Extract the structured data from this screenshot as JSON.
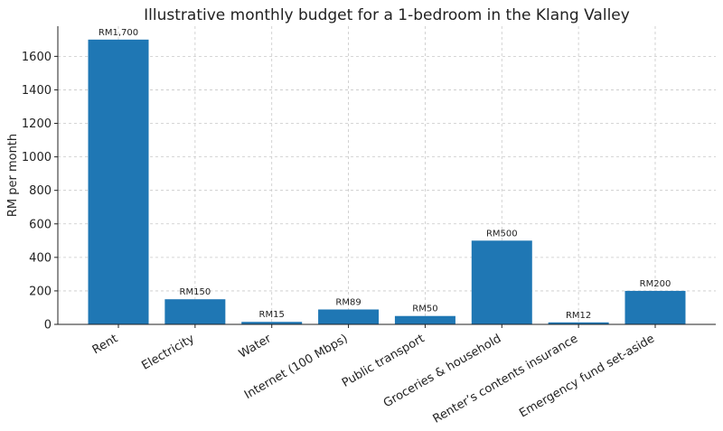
{
  "chart_data": {
    "type": "bar",
    "title": "Illustrative monthly budget for a 1-bedroom in the Klang Valley",
    "xlabel": "",
    "ylabel": "RM per month",
    "categories": [
      "Rent",
      "Electricity",
      "Water",
      "Internet (100 Mbps)",
      "Public transport",
      "Groceries & household",
      "Renter’s contents insurance",
      "Emergency fund set-aside"
    ],
    "values": [
      1700,
      150,
      15,
      89,
      50,
      500,
      12,
      200
    ],
    "data_labels": [
      "RM1,700",
      "RM150",
      "RM15",
      "RM89",
      "RM50",
      "RM500",
      "RM12",
      "RM200"
    ],
    "ylim": [
      0,
      1780
    ],
    "yticks": [
      0,
      200,
      400,
      600,
      800,
      1000,
      1200,
      1400,
      1600
    ],
    "grid": true,
    "bar_color": "#1f77b4"
  }
}
